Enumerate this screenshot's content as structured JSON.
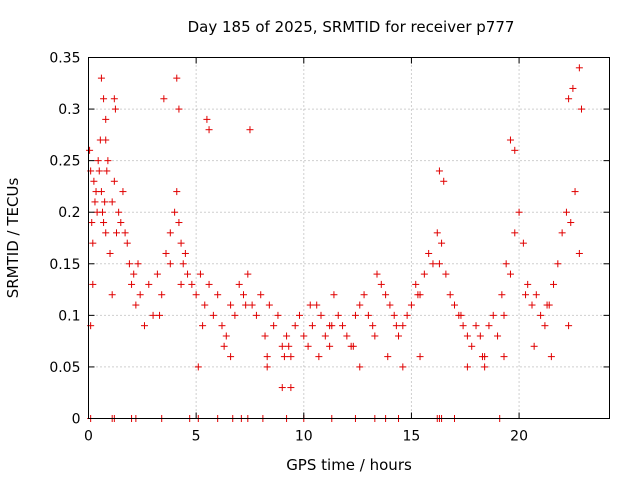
{
  "chart_data": {
    "type": "scatter",
    "title": "Day 185 of 2025, SRMTID for receiver p777",
    "xlabel": "GPS time / hours",
    "ylabel": "SRMTID / TECUs",
    "xlim": [
      0,
      24.2
    ],
    "ylim": [
      0,
      0.35
    ],
    "xticks": [
      0,
      5,
      10,
      15,
      20
    ],
    "xtick_labels": [
      "0",
      "5",
      "10",
      "15",
      "20"
    ],
    "yticks": [
      0,
      0.05,
      0.1,
      0.15,
      0.2,
      0.25,
      0.3,
      0.35
    ],
    "ytick_labels": [
      "0",
      "0.05",
      "0.1",
      "0.15",
      "0.2",
      "0.25",
      "0.3",
      "0.35"
    ],
    "grid": true,
    "marker": "+",
    "color": "#e00000",
    "series": [
      {
        "name": "SRMTID",
        "x": [
          0.05,
          0.1,
          0.15,
          0.2,
          0.25,
          0.3,
          0.35,
          0.4,
          0.45,
          0.5,
          0.55,
          0.6,
          0.65,
          0.7,
          0.75,
          0.8,
          0.85,
          0.9,
          1.0,
          1.1,
          1.2,
          1.3,
          1.4,
          1.5,
          1.6,
          1.7,
          1.8,
          1.9,
          2.0,
          2.2,
          2.4,
          2.6,
          2.8,
          3.0,
          3.2,
          3.4,
          3.6,
          3.8,
          4.0,
          4.1,
          4.2,
          4.3,
          4.4,
          4.5,
          4.6,
          4.8,
          5.0,
          5.2,
          5.4,
          5.6,
          5.8,
          6.0,
          6.2,
          6.4,
          6.6,
          6.8,
          7.0,
          7.2,
          7.4,
          7.6,
          7.8,
          8.0,
          8.2,
          8.4,
          8.6,
          8.8,
          9.0,
          9.2,
          9.4,
          9.6,
          9.8,
          10.0,
          10.2,
          10.4,
          10.6,
          10.8,
          11.0,
          11.2,
          11.4,
          11.6,
          11.8,
          12.0,
          12.2,
          12.4,
          12.6,
          12.8,
          13.0,
          13.2,
          13.4,
          13.6,
          13.8,
          14.0,
          14.2,
          14.4,
          14.6,
          14.8,
          15.0,
          15.2,
          15.4,
          15.6,
          15.8,
          16.0,
          16.2,
          16.4,
          16.6,
          16.8,
          17.0,
          17.2,
          17.4,
          17.6,
          17.8,
          18.0,
          18.2,
          18.4,
          18.6,
          18.8,
          19.0,
          19.2,
          19.4,
          19.6,
          19.8,
          20.0,
          20.2,
          20.4,
          20.6,
          20.8,
          21.0,
          21.2,
          21.4,
          21.6,
          21.8,
          22.0,
          22.2,
          22.4,
          22.6,
          22.8,
          0.6,
          0.7,
          0.8,
          1.2,
          1.25,
          3.5,
          4.1,
          4.2,
          5.5,
          5.6,
          7.5,
          16.3,
          16.5,
          19.6,
          19.8,
          22.3,
          22.5,
          22.8,
          22.9,
          0.2,
          0.8,
          2.3,
          3.8,
          5.1,
          6.6,
          8.3,
          9.1,
          10.7,
          11.2,
          12.6,
          13.9,
          14.6,
          15.4,
          17.6,
          18.4,
          19.3,
          20.7,
          21.5,
          9.0,
          9.4,
          0.1,
          1.1,
          2.1,
          3.3,
          4.3,
          5.3,
          6.3,
          7.3,
          8.3,
          9.3,
          10.3,
          11.3,
          12.3,
          13.3,
          14.3,
          15.3,
          16.3,
          17.3,
          18.3,
          19.3,
          20.3,
          21.3,
          22.3,
          0.1,
          1.1,
          1.2,
          2.0,
          2.2,
          3.4,
          4.7,
          5.1,
          6.0,
          6.7,
          7.1,
          7.4,
          8.1,
          9.2,
          10.0,
          11.3,
          12.4,
          13.3,
          13.8,
          14.4,
          16.2,
          16.3,
          16.4,
          17.0,
          19.1
        ],
        "y": [
          0.26,
          0.24,
          0.19,
          0.17,
          0.23,
          0.21,
          0.22,
          0.2,
          0.25,
          0.24,
          0.27,
          0.22,
          0.2,
          0.19,
          0.21,
          0.18,
          0.24,
          0.25,
          0.16,
          0.21,
          0.23,
          0.18,
          0.2,
          0.19,
          0.22,
          0.18,
          0.17,
          0.15,
          0.13,
          0.11,
          0.12,
          0.09,
          0.13,
          0.1,
          0.14,
          0.12,
          0.16,
          0.18,
          0.2,
          0.22,
          0.19,
          0.17,
          0.15,
          0.16,
          0.14,
          0.13,
          0.12,
          0.14,
          0.11,
          0.13,
          0.1,
          0.12,
          0.09,
          0.08,
          0.11,
          0.1,
          0.13,
          0.12,
          0.14,
          0.11,
          0.1,
          0.12,
          0.08,
          0.11,
          0.09,
          0.1,
          0.07,
          0.08,
          0.06,
          0.09,
          0.1,
          0.08,
          0.07,
          0.09,
          0.11,
          0.1,
          0.08,
          0.09,
          0.12,
          0.1,
          0.09,
          0.08,
          0.07,
          0.1,
          0.11,
          0.12,
          0.1,
          0.09,
          0.14,
          0.13,
          0.12,
          0.11,
          0.1,
          0.08,
          0.09,
          0.1,
          0.11,
          0.13,
          0.12,
          0.14,
          0.16,
          0.15,
          0.18,
          0.17,
          0.14,
          0.12,
          0.11,
          0.1,
          0.09,
          0.08,
          0.07,
          0.09,
          0.08,
          0.06,
          0.09,
          0.1,
          0.08,
          0.12,
          0.15,
          0.14,
          0.18,
          0.2,
          0.17,
          0.13,
          0.11,
          0.12,
          0.1,
          0.09,
          0.11,
          0.13,
          0.15,
          0.18,
          0.2,
          0.19,
          0.22,
          0.16,
          0.33,
          0.31,
          0.29,
          0.31,
          0.3,
          0.31,
          0.33,
          0.3,
          0.29,
          0.28,
          0.28,
          0.24,
          0.23,
          0.27,
          0.26,
          0.31,
          0.32,
          0.34,
          0.3,
          0.13,
          0.27,
          0.15,
          0.15,
          0.05,
          0.06,
          0.05,
          0.06,
          0.06,
          0.07,
          0.05,
          0.06,
          0.05,
          0.06,
          0.05,
          0.05,
          0.06,
          0.07,
          0.06,
          0.03,
          0.03,
          0.09,
          0.12,
          0.14,
          0.1,
          0.13,
          0.09,
          0.07,
          0.11,
          0.06,
          0.07,
          0.11,
          0.09,
          0.07,
          0.08,
          0.09,
          0.12,
          0.15,
          0.1,
          0.06,
          0.1,
          0.12,
          0.11,
          0.09,
          0.0,
          0.0,
          0.0,
          0.0,
          0.0,
          0.0,
          0.0,
          0.0,
          0.0,
          0.0,
          0.0,
          0.0,
          0.0,
          0.0,
          0.0,
          0.0,
          0.0,
          0.0,
          0.0,
          0.0,
          0.0,
          0.0,
          0.0,
          0.0,
          0.0
        ]
      }
    ]
  }
}
